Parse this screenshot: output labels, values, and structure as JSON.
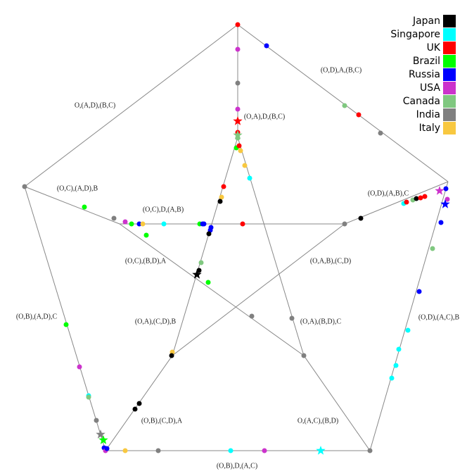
{
  "edge_labels": [
    "O,(A,D),(B,C)",
    "(O,D),A,(B,C)",
    "(O,A),D,(B,C)",
    "(O,C),(A,D),B",
    "(O,C),D,(A,B)",
    "(O,D),(A,B),C",
    "(O,C),(B,D),A",
    "(O,A,B),(C,D)",
    "(O,B),(A,D),C",
    "(O,A),(C,D),B",
    "(O,A),(B,D),C",
    "(O,D),(A,C),B",
    "(O,B),(C,D),A",
    "O,(A,C),(B,D)",
    "(O,B),D,(A,C)"
  ],
  "legend": [
    {
      "name": "Japan",
      "color": "#000000"
    },
    {
      "name": "Singapore",
      "color": "#00ffff"
    },
    {
      "name": "UK",
      "color": "#ff0000"
    },
    {
      "name": "Brazil",
      "color": "#00ff00"
    },
    {
      "name": "Russia",
      "color": "#0000ff"
    },
    {
      "name": "USA",
      "color": "#cc33cc"
    },
    {
      "name": "Canada",
      "color": "#80c880"
    },
    {
      "name": "India",
      "color": "#808080"
    },
    {
      "name": "Italy",
      "color": "#f8c840"
    }
  ]
}
